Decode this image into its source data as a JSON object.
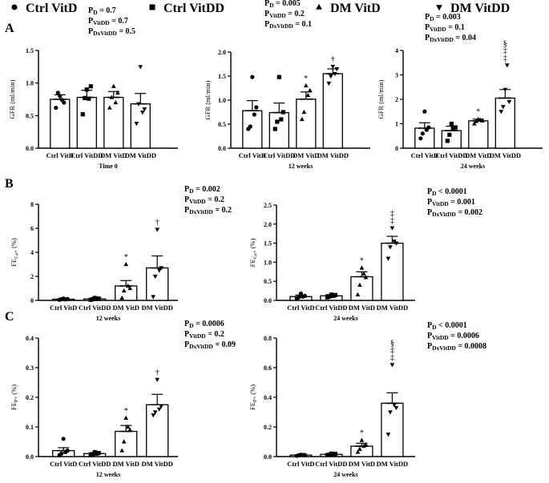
{
  "legend": [
    {
      "label": "Ctrl VitD",
      "marker": "circle"
    },
    {
      "label": "Ctrl VitDD",
      "marker": "square"
    },
    {
      "label": "DM VitD",
      "marker": "triangle-up"
    },
    {
      "label": "DM VitDD",
      "marker": "triangle-down"
    }
  ],
  "panel_letters": [
    "A",
    "B",
    "C"
  ],
  "chart_data": [
    {
      "id": "A1",
      "type": "bar",
      "row": "A",
      "categories": [
        "Ctrl VitD",
        "Ctrl VitDD",
        "DM VitD",
        "DM VitDD"
      ],
      "values": [
        0.75,
        0.78,
        0.78,
        0.68
      ],
      "sem": [
        0.07,
        0.11,
        0.09,
        0.16
      ],
      "points": [
        [
          0.62,
          0.85,
          0.8,
          0.74,
          0.7
        ],
        [
          0.52,
          0.77,
          0.9,
          0.76,
          0.95
        ],
        [
          0.62,
          0.78,
          0.95,
          0.7,
          0.85
        ],
        [
          0.38,
          0.68,
          1.25,
          0.55,
          0.6
        ]
      ],
      "marks": [
        "",
        "",
        "",
        ""
      ],
      "ylabel": "GFR (ml/min)",
      "xlabel": "Time 0",
      "ylim": [
        0,
        1.5
      ],
      "yticks": [
        0.0,
        0.5,
        1.0,
        1.5
      ],
      "tick_labels": [
        "0.0",
        "0.5",
        "1.0",
        "1.5"
      ],
      "stats": [
        {
          "pre": "P",
          "sub": "D",
          "post": " = 0.7"
        },
        {
          "pre": "P",
          "sub": "VitDD",
          "post": " = 0.7"
        },
        {
          "pre": "P",
          "sub": "DxVitDD",
          "post": " = 0.5"
        }
      ]
    },
    {
      "id": "A2",
      "type": "bar",
      "row": "A",
      "categories": [
        "Ctrl VitD",
        "Ctrl VitDD",
        "DM VitD",
        "DM VitDD"
      ],
      "values": [
        0.78,
        0.74,
        1.02,
        1.55
      ],
      "sem": [
        0.21,
        0.2,
        0.15,
        0.1
      ],
      "points": [
        [
          0.4,
          0.45,
          1.48,
          0.7,
          0.85
        ],
        [
          0.4,
          0.55,
          1.48,
          0.6,
          0.75
        ],
        [
          0.6,
          0.75,
          1.3,
          1.1,
          1.2
        ],
        [
          1.35,
          1.5,
          1.7,
          1.55,
          1.65
        ]
      ],
      "marks": [
        "",
        "",
        "*",
        "†"
      ],
      "ylabel": "GFR (ml/min)",
      "xlabel": "12 weeks",
      "ylim": [
        0,
        2.0
      ],
      "yticks": [
        0.0,
        0.5,
        1.0,
        1.5,
        2.0
      ],
      "tick_labels": [
        "0.0",
        "0.5",
        "1.0",
        "1.5",
        "2.0"
      ],
      "stats": [
        {
          "pre": "P",
          "sub": "D",
          "post": " = 0.005"
        },
        {
          "pre": "P",
          "sub": "VitDD",
          "post": " = 0.2"
        },
        {
          "pre": "P",
          "sub": "DxVitDD",
          "post": " = 0.1"
        }
      ]
    },
    {
      "id": "A3",
      "type": "bar",
      "row": "A",
      "categories": [
        "Ctrl VitD",
        "Ctrl VitDD",
        "DM VitD",
        "DM VitDD"
      ],
      "values": [
        0.82,
        0.72,
        1.12,
        2.05
      ],
      "sem": [
        0.22,
        0.18,
        0.07,
        0.35
      ],
      "points": [
        [
          0.4,
          0.6,
          1.5,
          0.75,
          0.85
        ],
        [
          0.3,
          0.55,
          1.0,
          0.8,
          0.85
        ],
        [
          1.0,
          1.1,
          1.18,
          1.15,
          1.12
        ],
        [
          1.5,
          1.7,
          2.4,
          3.4,
          1.9
        ]
      ],
      "marks": [
        "",
        "",
        "*",
        "§ ‡ ‡"
      ],
      "ylabel": "GFR (ml/min)",
      "xlabel": "24 weeks",
      "ylim": [
        0,
        4
      ],
      "yticks": [
        0,
        1,
        2,
        3,
        4
      ],
      "tick_labels": [
        "0",
        "1",
        "2",
        "3",
        "4"
      ],
      "stats": [
        {
          "pre": "P",
          "sub": "D",
          "post": " = 0.003"
        },
        {
          "pre": "P",
          "sub": "VitDD",
          "post": " = 0.1"
        },
        {
          "pre": "P",
          "sub": "DxVitDD",
          "post": " = 0.04"
        }
      ]
    },
    {
      "id": "B1",
      "type": "bar",
      "row": "B",
      "categories": [
        "Ctrl VitD",
        "Ctrl VitDD",
        "DM VitD",
        "DM VitDD"
      ],
      "values": [
        0.1,
        0.12,
        1.2,
        2.7
      ],
      "sem": [
        0.04,
        0.05,
        0.45,
        1.0
      ],
      "points": [
        [
          0.05,
          0.1,
          0.15,
          0.08,
          0.12
        ],
        [
          0.05,
          0.1,
          0.2,
          0.12,
          0.15
        ],
        [
          0.2,
          0.8,
          3.0,
          1.2,
          1.0
        ],
        [
          0.3,
          2.0,
          5.9,
          2.5,
          2.7
        ]
      ],
      "marks": [
        "",
        "",
        "*",
        "†"
      ],
      "ylabel": "FE",
      "ylabel_sub": "Ca+",
      "ylabel_post": " (%)",
      "xlabel": "12 weeks",
      "ylim": [
        0,
        8
      ],
      "yticks": [
        0,
        2,
        4,
        6,
        8
      ],
      "tick_labels": [
        "0",
        "2",
        "4",
        "6",
        "8"
      ],
      "stats": [
        {
          "pre": "P",
          "sub": "D",
          "post": " = 0.002"
        },
        {
          "pre": "P",
          "sub": "VitDD",
          "post": " = 0.2"
        },
        {
          "pre": "P",
          "sub": "DxVitDD",
          "post": " = 0.2"
        }
      ]
    },
    {
      "id": "B2",
      "type": "bar",
      "row": "B",
      "categories": [
        "Ctrl VitD",
        "Ctrl VitDD",
        "DM VitD",
        "DM VitDD"
      ],
      "values": [
        0.1,
        0.12,
        0.62,
        1.5
      ],
      "sem": [
        0.04,
        0.03,
        0.13,
        0.18
      ],
      "points": [
        [
          0.05,
          0.08,
          0.18,
          0.1,
          0.12
        ],
        [
          0.08,
          0.1,
          0.15,
          0.12,
          0.14
        ],
        [
          0.15,
          0.4,
          0.85,
          0.7,
          0.6
        ],
        [
          1.1,
          1.4,
          1.9,
          1.55,
          1.5
        ]
      ],
      "marks": [
        "",
        "",
        "*",
        "‡ ‡"
      ],
      "ylabel": "FE",
      "ylabel_sub": "Ca+",
      "ylabel_post": " (%)",
      "xlabel": "24 weeks",
      "ylim": [
        0,
        2.5
      ],
      "yticks": [
        0.0,
        0.5,
        1.0,
        1.5,
        2.0,
        2.5
      ],
      "tick_labels": [
        "0.0",
        "0.5",
        "1.0",
        "1.5",
        "2.0",
        "2.5"
      ],
      "stats": [
        {
          "pre": "P",
          "sub": "D",
          "post": " < 0.0001"
        },
        {
          "pre": "P",
          "sub": "VitDD",
          "post": " = 0.001"
        },
        {
          "pre": "P",
          "sub": "DxVitDD",
          "post": " = 0.002"
        }
      ]
    },
    {
      "id": "C1",
      "type": "bar",
      "row": "C",
      "categories": [
        "Ctrl VitD",
        "Ctrl VitDD",
        "DM VitD",
        "DM VitDD"
      ],
      "values": [
        0.02,
        0.01,
        0.085,
        0.175
      ],
      "sem": [
        0.01,
        0.003,
        0.02,
        0.035
      ],
      "points": [
        [
          0.005,
          0.01,
          0.06,
          0.015,
          0.02
        ],
        [
          0.005,
          0.008,
          0.015,
          0.01,
          0.012
        ],
        [
          0.02,
          0.05,
          0.13,
          0.1,
          0.09
        ],
        [
          0.14,
          0.15,
          0.26,
          0.16,
          0.17
        ]
      ],
      "marks": [
        "",
        "",
        "*",
        "†"
      ],
      "ylabel": "FE",
      "ylabel_sub": "P+",
      "ylabel_post": " (%)",
      "xlabel": "12 weeks",
      "ylim": [
        0,
        0.4
      ],
      "yticks": [
        0.0,
        0.1,
        0.2,
        0.3,
        0.4
      ],
      "tick_labels": [
        "0.0",
        "0.1",
        "0.2",
        "0.3",
        "0.4"
      ],
      "stats": [
        {
          "pre": "P",
          "sub": "D",
          "post": " = 0.0006"
        },
        {
          "pre": "P",
          "sub": "VitDD",
          "post": " = 0.2"
        },
        {
          "pre": "P",
          "sub": "DxVitDD",
          "post": " = 0.09"
        }
      ]
    },
    {
      "id": "C2",
      "type": "bar",
      "row": "C",
      "categories": [
        "Ctrl VitD",
        "Ctrl VitDD",
        "DM VitD",
        "DM VitDD"
      ],
      "values": [
        0.01,
        0.015,
        0.07,
        0.36
      ],
      "sem": [
        0.002,
        0.003,
        0.02,
        0.07
      ],
      "points": [
        [
          0.005,
          0.008,
          0.012,
          0.01,
          0.01
        ],
        [
          0.01,
          0.012,
          0.02,
          0.015,
          0.018
        ],
        [
          0.03,
          0.05,
          0.11,
          0.07,
          0.08
        ],
        [
          0.15,
          0.3,
          0.62,
          0.35,
          0.33
        ]
      ],
      "marks": [
        "",
        "",
        "*",
        "§ ‡ ‡"
      ],
      "ylabel": "FE",
      "ylabel_sub": "P+",
      "ylabel_post": " (%)",
      "xlabel": "24 weeks",
      "ylim": [
        0,
        0.8
      ],
      "yticks": [
        0.0,
        0.2,
        0.4,
        0.6,
        0.8
      ],
      "tick_labels": [
        "0.0",
        "0.2",
        "0.4",
        "0.6",
        "0.8"
      ],
      "stats": [
        {
          "pre": "P",
          "sub": "D",
          "post": " < 0.0001"
        },
        {
          "pre": "P",
          "sub": "VitDD",
          "post": " = 0.0006"
        },
        {
          "pre": "P",
          "sub": "DxVitDD",
          "post": " = 0.0008"
        }
      ]
    }
  ]
}
